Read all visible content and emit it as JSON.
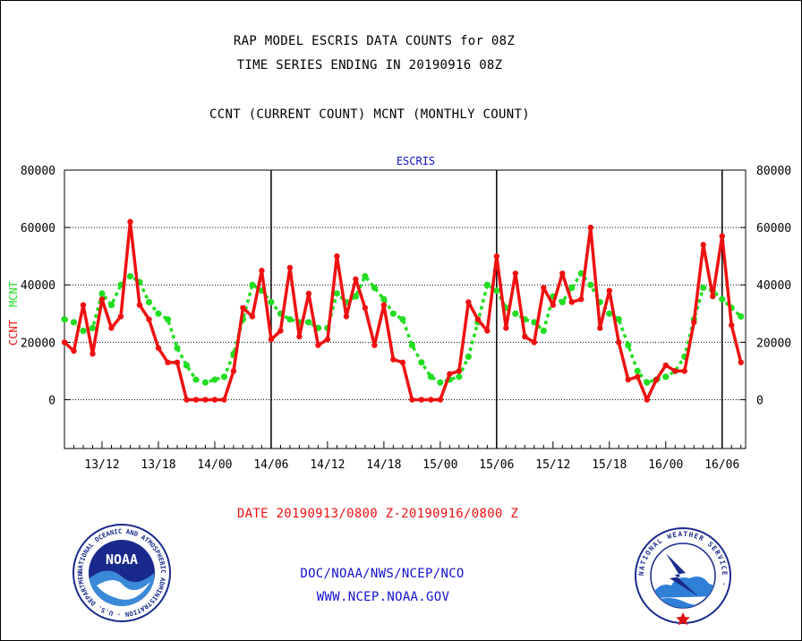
{
  "header": {
    "title_line1": "RAP MODEL ESCRIS DATA COUNTS for 08Z",
    "title_line2": "TIME SERIES ENDING IN 20190916 08Z",
    "subtitle": "CCNT (CURRENT COUNT) MCNT (MONTHLY COUNT)"
  },
  "footer": {
    "date_range": "DATE 20190913/0800 Z-20190916/0800 Z",
    "org": "DOC/NOAA/NWS/NCEP/NCO",
    "url": "WWW.NCEP.NOAA.GOV"
  },
  "logos": {
    "noaa_text": "NOAA",
    "noaa_ring": "NATIONAL OCEANIC AND ATMOSPHERIC ADMINISTRATION · U.S. DEPARTMENT OF COMMERCE ·",
    "nws_ring": "NATIONAL WEATHER SERVICE ·"
  },
  "colors": {
    "ccnt": "#ee1111",
    "mcnt": "#22dd22",
    "panel_title": "#1111cc",
    "footer_link": "#1111cc",
    "date_text": "#ee1111"
  },
  "chart_data": {
    "type": "line",
    "panel_title": "ESCRIS",
    "xlabel": "",
    "ylabel_left": "CCNT",
    "ylabel_left2": "MCNT",
    "ylim": [
      -17000,
      80000
    ],
    "yticks": [
      0,
      20000,
      40000,
      60000,
      80000
    ],
    "x_range_hours": [
      8,
      80.5
    ],
    "x_ticks": [
      {
        "hour": 12,
        "label": "13/12"
      },
      {
        "hour": 18,
        "label": "13/18"
      },
      {
        "hour": 24,
        "label": "14/00"
      },
      {
        "hour": 30,
        "label": "14/06"
      },
      {
        "hour": 36,
        "label": "14/12"
      },
      {
        "hour": 42,
        "label": "14/18"
      },
      {
        "hour": 48,
        "label": "15/00"
      },
      {
        "hour": 54,
        "label": "15/06"
      },
      {
        "hour": 60,
        "label": "15/12"
      },
      {
        "hour": 66,
        "label": "15/18"
      },
      {
        "hour": 72,
        "label": "16/00"
      },
      {
        "hour": 78,
        "label": "16/06"
      }
    ],
    "day_dividers": [
      30,
      54,
      78
    ],
    "grid": "horizontal dotted",
    "series": [
      {
        "name": "CCNT",
        "color": "#ee1111",
        "x": [
          8,
          9,
          10,
          11,
          12,
          13,
          14,
          15,
          16,
          17,
          18,
          19,
          20,
          21,
          22,
          23,
          24,
          25,
          26,
          27,
          28,
          29,
          30,
          31,
          32,
          33,
          34,
          35,
          36,
          37,
          38,
          39,
          40,
          41,
          42,
          43,
          44,
          45,
          46,
          47,
          48,
          49,
          50,
          51,
          52,
          53,
          54,
          55,
          56,
          57,
          58,
          59,
          60,
          61,
          62,
          63,
          64,
          65,
          66,
          67,
          68,
          69,
          70,
          71,
          72,
          73,
          74,
          75,
          76,
          77,
          78,
          79,
          80
        ],
        "values": [
          20000,
          17000,
          33000,
          16000,
          35000,
          25000,
          29000,
          62000,
          33000,
          28000,
          18000,
          13000,
          13000,
          0,
          0,
          0,
          0,
          0,
          10000,
          32000,
          29000,
          45000,
          21000,
          24000,
          46000,
          22000,
          37000,
          19000,
          21000,
          50000,
          29000,
          42000,
          32000,
          19000,
          33000,
          14000,
          13000,
          0,
          0,
          0,
          0,
          9000,
          10000,
          34000,
          28000,
          24000,
          50000,
          25000,
          44000,
          22000,
          20000,
          39000,
          33000,
          44000,
          34000,
          35000,
          60000,
          25000,
          38000,
          20000,
          7000,
          8000,
          0,
          7000,
          12000,
          10000,
          10000,
          27000,
          54000,
          36000,
          57000,
          26000,
          13000
        ]
      },
      {
        "name": "MCNT",
        "color": "#22dd22",
        "x": [
          8,
          9,
          10,
          11,
          12,
          13,
          14,
          15,
          16,
          17,
          18,
          19,
          20,
          21,
          22,
          23,
          24,
          25,
          26,
          27,
          28,
          29,
          30,
          31,
          32,
          33,
          34,
          35,
          36,
          37,
          38,
          39,
          40,
          41,
          42,
          43,
          44,
          45,
          46,
          47,
          48,
          49,
          50,
          51,
          52,
          53,
          54,
          55,
          56,
          57,
          58,
          59,
          60,
          61,
          62,
          63,
          64,
          65,
          66,
          67,
          68,
          69,
          70,
          71,
          72,
          73,
          74,
          75,
          76,
          77,
          78,
          79,
          80
        ],
        "values": [
          28000,
          27000,
          24000,
          25000,
          37000,
          33000,
          40000,
          43000,
          41000,
          34000,
          30000,
          28000,
          18000,
          12000,
          7000,
          6000,
          7000,
          8000,
          16000,
          28000,
          40000,
          38000,
          34000,
          30000,
          28000,
          27000,
          27000,
          25000,
          25000,
          37000,
          34000,
          36000,
          43000,
          39000,
          35000,
          30000,
          28000,
          19000,
          13000,
          8000,
          6000,
          7000,
          8000,
          15000,
          27000,
          40000,
          38000,
          32000,
          30000,
          28000,
          27000,
          24000,
          36000,
          34000,
          39000,
          44000,
          40000,
          34000,
          30000,
          28000,
          19000,
          10000,
          6000,
          7000,
          8000,
          10000,
          15000,
          28000,
          39000,
          38000,
          35000,
          32000,
          29000
        ]
      }
    ]
  }
}
